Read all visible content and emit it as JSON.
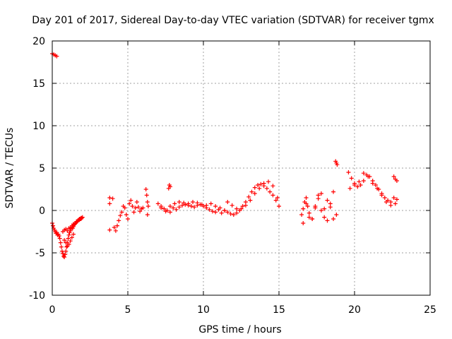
{
  "chart_data": {
    "type": "scatter",
    "title": "Day 201 of 2017, Sidereal Day-to-day VTEC variation (SDTVAR) for receiver tgmx",
    "xlabel": "GPS time / hours",
    "ylabel": "SDTVAR / TECUs",
    "xlim": [
      0,
      25
    ],
    "ylim": [
      -10,
      20
    ],
    "x_ticks": [
      0,
      5,
      10,
      15,
      20,
      25
    ],
    "x_tick_labels": [
      "0",
      "5",
      "10",
      "15",
      "20",
      "25"
    ],
    "y_ticks": [
      -10,
      -5,
      0,
      5,
      10,
      15,
      20
    ],
    "y_tick_labels": [
      "-10",
      "-5",
      "0",
      "5",
      "10",
      "15",
      "20"
    ],
    "grid": true,
    "marker": "+",
    "color": "#ff0000",
    "series": [
      {
        "name": "SDTVAR",
        "x": [
          0.0,
          0.1,
          0.2,
          0.3,
          0.0,
          0.05,
          0.1,
          0.15,
          0.2,
          0.25,
          0.3,
          0.35,
          0.4,
          0.45,
          0.5,
          0.55,
          0.6,
          0.65,
          0.7,
          0.75,
          0.8,
          0.85,
          0.9,
          0.95,
          1.0,
          1.05,
          1.1,
          1.15,
          1.2,
          1.25,
          1.3,
          1.35,
          1.4,
          1.45,
          1.5,
          1.55,
          1.6,
          1.65,
          1.7,
          1.75,
          1.8,
          1.85,
          1.9,
          1.95,
          2.0,
          0.7,
          0.8,
          0.9,
          1.0,
          1.1,
          1.2,
          1.3,
          1.4,
          1.5,
          1.6,
          1.7,
          1.8,
          1.9,
          0.8,
          0.9,
          1.0,
          1.1,
          1.2,
          1.3,
          1.4,
          3.8,
          3.8,
          3.8,
          4.0,
          4.1,
          4.2,
          4.3,
          4.4,
          4.5,
          4.6,
          4.7,
          4.8,
          4.9,
          5.0,
          5.1,
          5.2,
          5.3,
          5.4,
          5.5,
          5.6,
          5.7,
          5.8,
          5.9,
          6.0,
          6.2,
          6.25,
          6.3,
          6.35,
          6.3,
          7.0,
          7.2,
          7.4,
          7.6,
          7.8,
          8.0,
          8.2,
          8.4,
          8.6,
          8.8,
          9.0,
          9.2,
          9.4,
          9.6,
          9.8,
          10.0,
          10.2,
          10.4,
          10.6,
          10.8,
          11.0,
          11.2,
          11.4,
          7.2,
          7.5,
          7.8,
          8.1,
          8.4,
          8.7,
          9.0,
          9.3,
          9.6,
          9.9,
          10.2,
          10.5,
          10.8,
          11.1,
          7.7,
          7.75,
          7.8,
          11.4,
          11.6,
          11.8,
          12.0,
          12.2,
          12.4,
          12.6,
          12.8,
          13.0,
          13.2,
          13.4,
          13.6,
          13.8,
          14.0,
          14.2,
          14.4,
          14.6,
          14.8,
          15.0,
          11.6,
          11.9,
          12.2,
          12.5,
          12.8,
          13.1,
          13.4,
          13.7,
          14.0,
          14.3,
          14.6,
          14.9,
          16.5,
          16.6,
          16.7,
          16.8,
          16.9,
          17.0,
          17.2,
          17.4,
          17.6,
          17.8,
          18.0,
          18.2,
          18.4,
          18.6,
          18.8,
          16.6,
          16.8,
          17.0,
          17.2,
          17.4,
          17.6,
          17.8,
          18.0,
          18.2,
          18.4,
          18.6,
          18.75,
          18.8,
          18.85,
          19.6,
          19.8,
          20.0,
          20.2,
          20.4,
          20.6,
          20.8,
          21.0,
          21.2,
          21.4,
          21.6,
          21.8,
          22.0,
          22.2,
          22.4,
          22.6,
          22.8,
          19.7,
          20.0,
          20.3,
          20.6,
          20.9,
          21.2,
          21.5,
          21.8,
          22.1,
          22.4,
          22.7,
          22.6,
          22.7,
          22.8
        ],
        "y": [
          18.5,
          18.4,
          18.3,
          18.2,
          -1.5,
          -1.8,
          -2.1,
          -2.3,
          -2.5,
          -2.7,
          -2.6,
          -2.9,
          -2.8,
          -3.0,
          -3.3,
          -3.8,
          -4.3,
          -4.8,
          -5.1,
          -5.4,
          -5.5,
          -5.2,
          -4.8,
          -4.3,
          -3.8,
          -3.3,
          -2.9,
          -2.6,
          -2.4,
          -2.2,
          -2.0,
          -2.1,
          -1.9,
          -1.7,
          -1.6,
          -1.5,
          -1.4,
          -1.3,
          -1.2,
          -1.1,
          -1.0,
          -1.0,
          -0.9,
          -0.9,
          -0.8,
          -2.5,
          -2.3,
          -2.2,
          -2.4,
          -2.1,
          -2.0,
          -1.8,
          -1.6,
          -1.5,
          -1.3,
          -1.2,
          -1.1,
          -1.0,
          -3.5,
          -3.8,
          -4.2,
          -4.0,
          -3.6,
          -3.2,
          -2.8,
          1.5,
          0.8,
          -2.3,
          1.4,
          -2.0,
          -2.4,
          -1.8,
          -1.2,
          -0.6,
          -0.2,
          0.5,
          0.3,
          -0.5,
          -1.0,
          0.8,
          1.2,
          0.5,
          -0.2,
          0.3,
          1.0,
          0.4,
          -0.1,
          0.2,
          0.3,
          2.5,
          1.8,
          1.0,
          0.5,
          -0.5,
          0.8,
          0.5,
          0.2,
          0.0,
          -0.2,
          0.3,
          0.1,
          0.4,
          0.6,
          0.7,
          0.6,
          0.5,
          0.4,
          0.6,
          0.7,
          0.5,
          0.3,
          0.1,
          -0.1,
          -0.2,
          0.1,
          -0.3,
          0.0,
          0.3,
          -0.1,
          0.5,
          0.8,
          1.0,
          0.9,
          0.8,
          1.0,
          0.9,
          0.7,
          0.6,
          0.8,
          0.5,
          0.3,
          2.6,
          3.0,
          2.8,
          0.0,
          -0.2,
          -0.4,
          -0.5,
          -0.3,
          0.0,
          0.5,
          1.0,
          1.6,
          2.2,
          2.7,
          3.0,
          3.1,
          2.9,
          2.6,
          2.2,
          1.8,
          1.2,
          0.5,
          1.0,
          0.6,
          0.2,
          0.2,
          0.6,
          1.2,
          2.0,
          2.6,
          3.2,
          3.4,
          2.9,
          1.5,
          -0.5,
          0.2,
          1.0,
          1.5,
          0.5,
          -0.8,
          -1.0,
          0.3,
          1.8,
          2.0,
          0.2,
          -1.2,
          0.8,
          2.2,
          -0.5,
          -1.5,
          0.8,
          -0.3,
          -1.0,
          0.5,
          1.4,
          0.0,
          -0.8,
          1.2,
          0.4,
          -1.0,
          5.8,
          5.6,
          5.4,
          4.5,
          3.8,
          3.2,
          2.8,
          3.0,
          3.5,
          4.2,
          4.0,
          3.5,
          3.0,
          2.5,
          2.0,
          1.5,
          1.2,
          1.0,
          1.5,
          1.3,
          2.6,
          3.0,
          3.4,
          4.4,
          4.0,
          3.2,
          2.6,
          1.8,
          1.0,
          0.6,
          0.8,
          4.0,
          3.7,
          3.5
        ]
      }
    ]
  }
}
